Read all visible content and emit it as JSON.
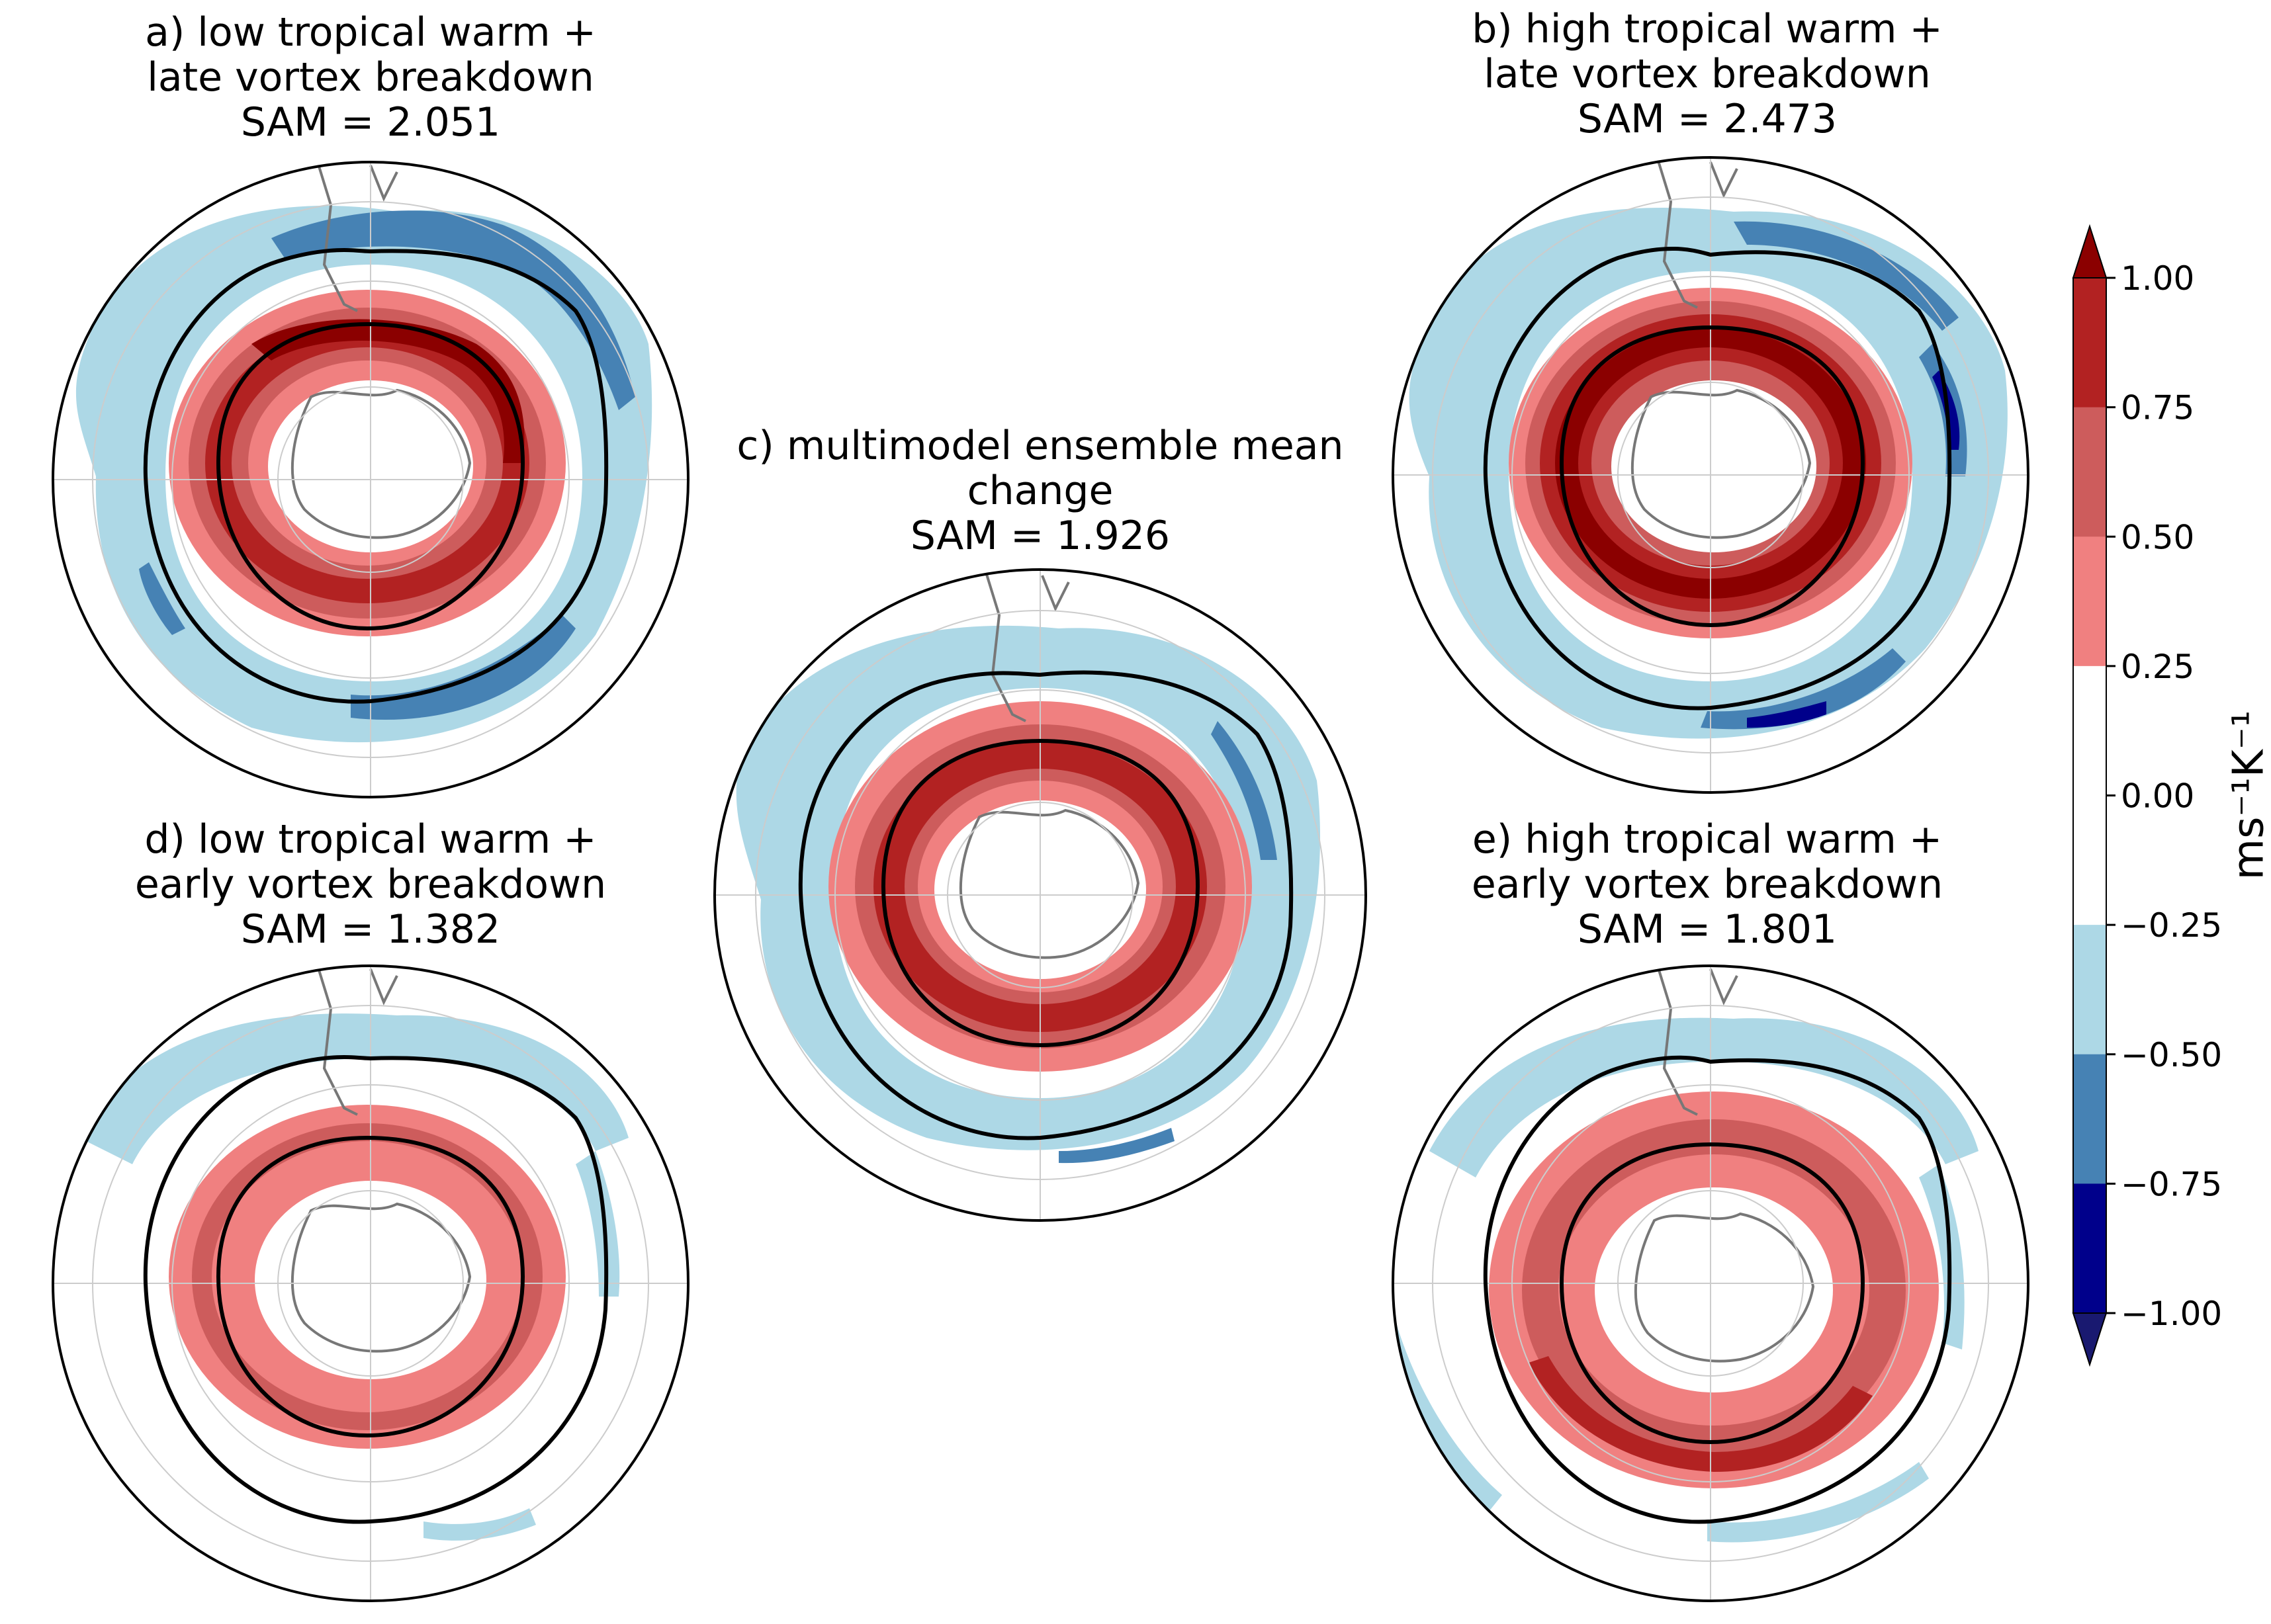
{
  "panels": [
    {
      "id": "a",
      "title_lines": [
        "a) low tropical warm +",
        "late vortex breakdown",
        "SAM = 2.051"
      ],
      "sam": 2.051
    },
    {
      "id": "b",
      "title_lines": [
        "b) high tropical warm +",
        "late vortex breakdown",
        "SAM = 2.473"
      ],
      "sam": 2.473
    },
    {
      "id": "c",
      "title_lines": [
        "c) multimodel ensemble mean",
        "change",
        "SAM = 1.926"
      ],
      "sam": 1.926
    },
    {
      "id": "d",
      "title_lines": [
        "d) low tropical warm +",
        "early vortex breakdown",
        "SAM = 1.382"
      ],
      "sam": 1.382
    },
    {
      "id": "e",
      "title_lines": [
        "e) high tropical warm +",
        "early vortex breakdown",
        "SAM = 1.801"
      ],
      "sam": 1.801
    }
  ],
  "colorbar": {
    "tick_labels": [
      "1.00",
      "0.75",
      "0.50",
      "0.25",
      "0.00",
      "−0.25",
      "−0.50",
      "−0.75",
      "−1.00"
    ],
    "levels": [
      1.0,
      0.75,
      0.5,
      0.25,
      0.0,
      -0.25,
      -0.5,
      -0.75,
      -1.0
    ],
    "colors": [
      "#8b0000",
      "#b22222",
      "#cd5c5c",
      "#f08080",
      "#ffffff",
      "#ffffff",
      "#add8e6",
      "#4682b4",
      "#00008b",
      "#191970"
    ],
    "unit_label": "ms⁻¹K⁻¹"
  }
}
